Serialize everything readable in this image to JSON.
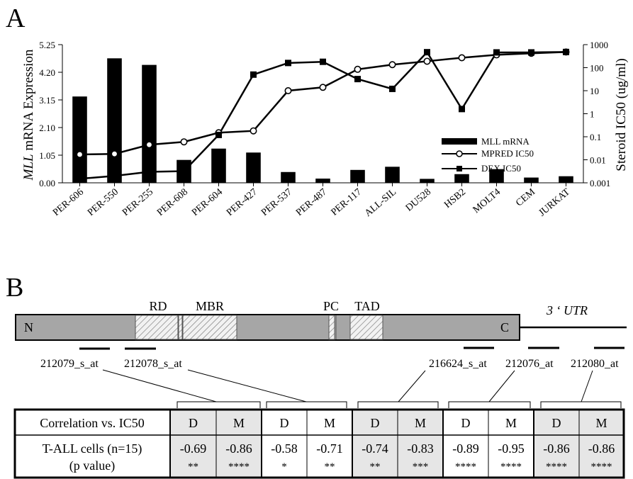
{
  "panel_a_label": "A",
  "panel_b_label": "B",
  "chart_data": {
    "type": "bar",
    "categories": [
      "PER-606",
      "PER-550",
      "PER-255",
      "PER-608",
      "PER-604",
      "PER-427",
      "PER-537",
      "PER-487",
      "PER-117",
      "ALL-SIL",
      "DU528",
      "HSB2",
      "MOLT4",
      "CEM",
      "JURKAT"
    ],
    "ylabel_italic": "MLL",
    "ylabel_rest": " mRNA Expression",
    "y2label": "Steroid IC50 (ug/ml)",
    "ylim": [
      0,
      5.25
    ],
    "yticks": [
      "0.00",
      "1.05",
      "2.10",
      "3.15",
      "4.20",
      "5.25"
    ],
    "y2scale": "log",
    "y2lim": [
      0.001,
      1000
    ],
    "y2ticks": [
      "0.001",
      "0.01",
      "0.1",
      "1",
      "10",
      "100",
      "1000"
    ],
    "series": [
      {
        "name": "MLL mRNA",
        "type": "bar",
        "values": [
          3.28,
          4.73,
          4.48,
          0.87,
          1.3,
          1.15,
          0.41,
          0.16,
          0.49,
          0.61,
          0.15,
          0.33,
          0.52,
          0.2,
          0.25
        ]
      },
      {
        "name": "MPRED IC50",
        "type": "line",
        "marker": "open-circle",
        "values": [
          0.017,
          0.018,
          0.045,
          0.06,
          0.15,
          0.18,
          10,
          14,
          85,
          135,
          190,
          270,
          360,
          420,
          480
        ]
      },
      {
        "name": "DEX IC50",
        "type": "line",
        "marker": "filled-square",
        "values": [
          0.0015,
          0.002,
          0.003,
          0.0032,
          0.12,
          50,
          160,
          180,
          32,
          12,
          470,
          1.6,
          460,
          460,
          480
        ]
      }
    ]
  },
  "domain_bar": {
    "n_label": "N",
    "c_label": "C",
    "utr_label": "3 ‘ UTR",
    "domains": [
      "RD",
      "MBR",
      "PC",
      "TAD"
    ]
  },
  "probes": [
    "212079_s_at",
    "212078_s_at",
    "216624_s_at",
    "212076_at",
    "212080_at"
  ],
  "table": {
    "header_label": "Correlation vs. IC50",
    "row_label_1": "T-ALL cells (n=15)",
    "row_label_2": "(p value)",
    "columns": [
      {
        "head": "D",
        "value": "-0.69",
        "stars": "**",
        "shaded": true
      },
      {
        "head": "M",
        "value": "-0.86",
        "stars": "****",
        "shaded": true
      },
      {
        "head": "D",
        "value": "-0.58",
        "stars": "*",
        "shaded": false
      },
      {
        "head": "M",
        "value": "-0.71",
        "stars": "**",
        "shaded": false
      },
      {
        "head": "D",
        "value": "-0.74",
        "stars": "**",
        "shaded": true
      },
      {
        "head": "M",
        "value": "-0.83",
        "stars": "***",
        "shaded": true
      },
      {
        "head": "D",
        "value": "-0.89",
        "stars": "****",
        "shaded": false
      },
      {
        "head": "M",
        "value": "-0.95",
        "stars": "****",
        "shaded": false
      },
      {
        "head": "D",
        "value": "-0.86",
        "stars": "****",
        "shaded": true
      },
      {
        "head": "M",
        "value": "-0.86",
        "stars": "****",
        "shaded": true
      }
    ]
  },
  "colors": {
    "bar": "#000000",
    "domain_fill": "#a6a6a6",
    "table_shade": "#e6e6e6"
  }
}
